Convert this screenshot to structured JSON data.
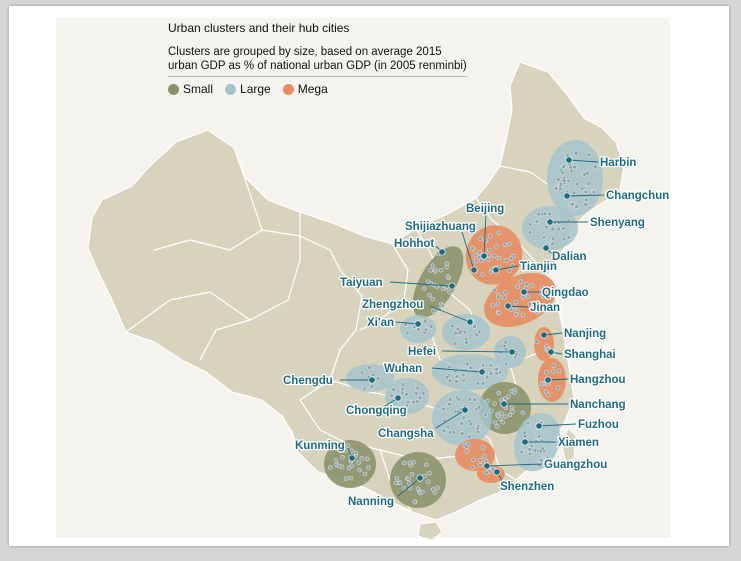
{
  "title": "Urban clusters and their hub cities",
  "subtitle_line1": "Clusters are grouped by size, based on average 2015",
  "subtitle_line2": "urban GDP as % of national urban GDP (in 2005 renminbi)",
  "colors": {
    "small": "#8c926a",
    "large": "#a6c3cb",
    "mega": "#e78c61",
    "land": "#d8d3bd",
    "border": "#ffffff",
    "label": "#1f6c80",
    "hub": "#1f6c80",
    "node": "#8fa3a8"
  },
  "legend": [
    {
      "key": "small",
      "label": "Small"
    },
    {
      "key": "large",
      "label": "Large"
    },
    {
      "key": "mega",
      "label": "Mega"
    }
  ],
  "cities": [
    {
      "name": "Harbin",
      "size": "large"
    },
    {
      "name": "Changchun",
      "size": "large"
    },
    {
      "name": "Shenyang",
      "size": "large"
    },
    {
      "name": "Dalian",
      "size": "large"
    },
    {
      "name": "Beijing",
      "size": "mega"
    },
    {
      "name": "Tianjin",
      "size": "mega"
    },
    {
      "name": "Shijiazhuang",
      "size": "mega"
    },
    {
      "name": "Hohhot",
      "size": "small"
    },
    {
      "name": "Taiyuan",
      "size": "small"
    },
    {
      "name": "Qingdao",
      "size": "mega"
    },
    {
      "name": "Jinan",
      "size": "mega"
    },
    {
      "name": "Zhengzhou",
      "size": "large"
    },
    {
      "name": "Xi'an",
      "size": "large"
    },
    {
      "name": "Nanjing",
      "size": "mega"
    },
    {
      "name": "Shanghai",
      "size": "mega"
    },
    {
      "name": "Hefei",
      "size": "large"
    },
    {
      "name": "Hangzhou",
      "size": "mega"
    },
    {
      "name": "Wuhan",
      "size": "large"
    },
    {
      "name": "Chengdu",
      "size": "large"
    },
    {
      "name": "Chongqing",
      "size": "large"
    },
    {
      "name": "Nanchang",
      "size": "small"
    },
    {
      "name": "Changsha",
      "size": "large"
    },
    {
      "name": "Fuzhou",
      "size": "large"
    },
    {
      "name": "Xiamen",
      "size": "large"
    },
    {
      "name": "Guangzhou",
      "size": "mega"
    },
    {
      "name": "Shenzhen",
      "size": "mega"
    },
    {
      "name": "Kunming",
      "size": "small"
    },
    {
      "name": "Nanning",
      "size": "small"
    }
  ]
}
